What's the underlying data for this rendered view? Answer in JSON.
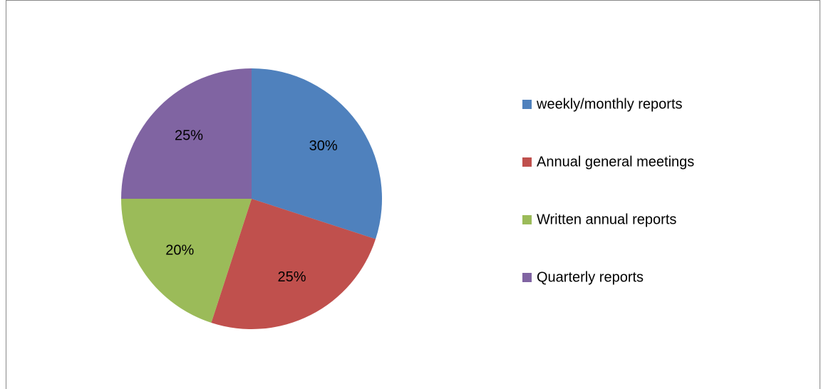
{
  "chart_data": {
    "type": "pie",
    "categories": [
      "weekly/monthly reports",
      "Annual general meetings",
      "Written annual reports",
      "Quarterly reports"
    ],
    "values": [
      30,
      25,
      20,
      25
    ],
    "value_labels": [
      "30%",
      "25%",
      "20%",
      "25%"
    ],
    "colors": [
      "#4f81bd",
      "#c0504d",
      "#9bbb59",
      "#8064a2"
    ],
    "legend": "right"
  }
}
